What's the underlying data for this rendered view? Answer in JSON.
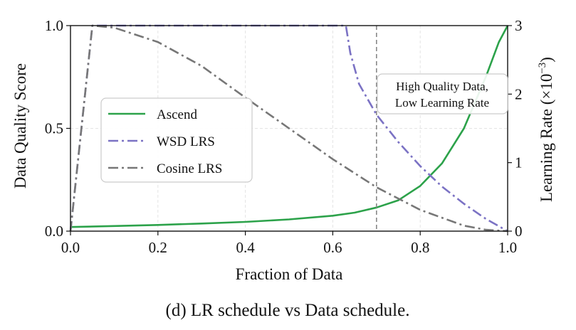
{
  "chart_data": {
    "type": "line",
    "title": "",
    "caption": "(d) LR schedule vs Data schedule.",
    "xlabel": "Fraction of Data",
    "ylabel": "Data Quality Score",
    "ylabel_right": "Learning Rate (×10",
    "ylabel_right_exp": "−3",
    "ylabel_right_close": ")",
    "xlim": [
      0,
      1
    ],
    "ylim": [
      0,
      1
    ],
    "ylim_right": [
      0,
      3
    ],
    "x_ticks": [
      "0.0",
      "0.2",
      "0.4",
      "0.6",
      "0.8",
      "1.0"
    ],
    "y_ticks": [
      "0.0",
      "0.5",
      "1.0"
    ],
    "y_ticks_right": [
      "0",
      "1",
      "2",
      "3"
    ],
    "grid": true,
    "legend_position": "center-left",
    "annotation": {
      "lines": [
        "High Quality Data,",
        "Low Learning Rate"
      ],
      "vline_x": 0.7
    },
    "series": [
      {
        "name": "Ascend",
        "axis": "left",
        "style": "solid",
        "color": "#2ca24a",
        "x": [
          0.0,
          0.1,
          0.2,
          0.3,
          0.4,
          0.5,
          0.6,
          0.65,
          0.7,
          0.75,
          0.8,
          0.85,
          0.9,
          0.95,
          0.98,
          1.0
        ],
        "y": [
          0.02,
          0.025,
          0.03,
          0.037,
          0.045,
          0.057,
          0.075,
          0.09,
          0.115,
          0.15,
          0.22,
          0.33,
          0.5,
          0.75,
          0.92,
          1.0
        ]
      },
      {
        "name": "WSD LRS",
        "axis": "right",
        "style": "dashdot",
        "color": "#7b72c4",
        "x": [
          0.0,
          0.05,
          0.1,
          0.2,
          0.3,
          0.4,
          0.5,
          0.6,
          0.63,
          0.64,
          0.66,
          0.7,
          0.75,
          0.8,
          0.85,
          0.9,
          0.95,
          1.0
        ],
        "y": [
          0.0,
          3.0,
          3.0,
          3.0,
          3.0,
          3.0,
          3.0,
          3.0,
          3.0,
          2.6,
          2.15,
          1.7,
          1.3,
          0.95,
          0.65,
          0.4,
          0.18,
          0.0
        ]
      },
      {
        "name": "Cosine LRS",
        "axis": "right",
        "style": "dashdot",
        "color": "#777777",
        "x": [
          0.0,
          0.05,
          0.1,
          0.2,
          0.3,
          0.4,
          0.5,
          0.6,
          0.7,
          0.8,
          0.9,
          0.95,
          1.0
        ],
        "y": [
          0.0,
          3.0,
          2.97,
          2.76,
          2.41,
          1.95,
          1.5,
          1.05,
          0.64,
          0.31,
          0.08,
          0.02,
          0.0
        ]
      }
    ]
  }
}
